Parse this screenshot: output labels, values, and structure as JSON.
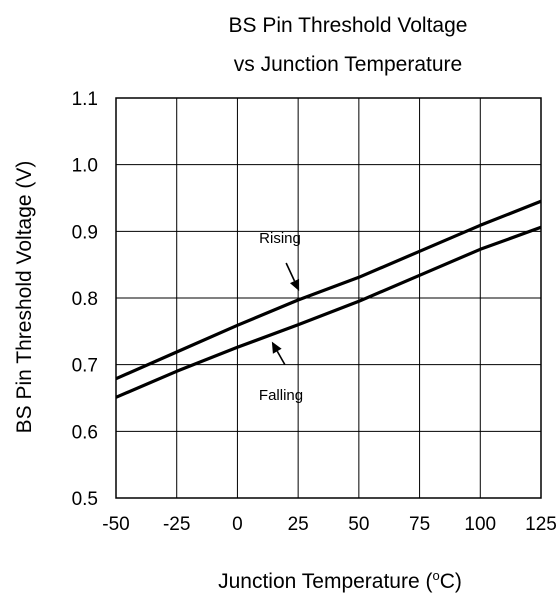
{
  "chart_data": {
    "type": "line",
    "title_line1": "BS Pin Threshold Voltage",
    "title_line2": "vs Junction Temperature",
    "xlabel": "Junction Temperature (",
    "xlabel_super": "o",
    "xlabel_tail": "C)",
    "ylabel": "BS Pin Threshold  Voltage (V)",
    "xlim": [
      -50,
      125
    ],
    "ylim": [
      0.5,
      1.1
    ],
    "x_ticks": [
      -50,
      -25,
      0,
      25,
      50,
      75,
      100,
      125
    ],
    "x_tick_labels": [
      "-50",
      "-25",
      "0",
      "25",
      "50",
      "75",
      "100",
      "125"
    ],
    "y_ticks": [
      0.5,
      0.6,
      0.7,
      0.8,
      0.9,
      1.0,
      1.1
    ],
    "y_tick_labels": [
      "0.5",
      "0.6",
      "0.7",
      "0.8",
      "0.9",
      "1.0",
      "1.1"
    ],
    "grid": true,
    "series": [
      {
        "name": "Rising",
        "x": [
          -50,
          -25,
          0,
          25,
          50,
          75,
          100,
          125
        ],
        "y": [
          0.679,
          0.719,
          0.759,
          0.797,
          0.831,
          0.87,
          0.909,
          0.945
        ]
      },
      {
        "name": "Falling",
        "x": [
          -50,
          -25,
          0,
          25,
          50,
          75,
          100,
          125
        ],
        "y": [
          0.651,
          0.69,
          0.726,
          0.76,
          0.795,
          0.834,
          0.873,
          0.906
        ]
      }
    ],
    "annotations": [
      {
        "text": "Rising",
        "target_series": "Rising",
        "x": 25,
        "y": 0.797
      },
      {
        "text": "Falling",
        "target_series": "Falling",
        "x": 15,
        "y": 0.745
      }
    ]
  }
}
